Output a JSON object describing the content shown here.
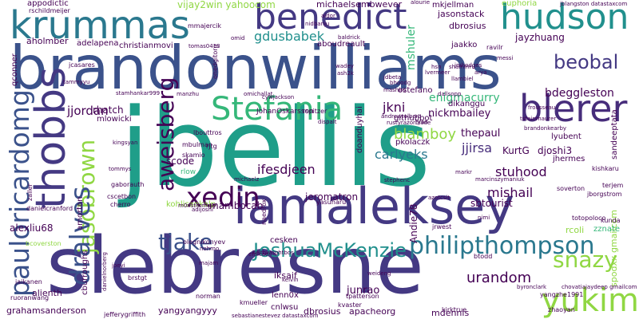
{
  "palette": {
    "teal": "#21908d",
    "blue": "#3b528b",
    "indigo": "#443983",
    "purple": "#472d7b",
    "dark": "#440154",
    "green": "#35b779",
    "lime": "#90d743",
    "yellow": "#dde318",
    "cyan": "#2a788e",
    "sea": "#1f9e89"
  },
  "words": {
    "jbellis": "jbellis",
    "brandonwilliams": "brandonwilliams",
    "slebresne": "slebresne",
    "iamaleksey": "iamaleksey",
    "benedict": "benedict",
    "hudson": "hudson",
    "krummas": "krummas",
    "thobbs": "thobbs",
    "stefania": "Stefania",
    "blerer": "blerer",
    "pauloricardomg": "pauloricardomg",
    "yukim": "yukim",
    "jasobrown": "jasobrown",
    "aweisberg": "aweisberg",
    "xedin": "xedin",
    "joshuamckenzie": "JoshuaMcKenzie",
    "philipthompson": "philipthompson",
    "snazy": "snazy",
    "tjake": "tjake",
    "beobal": "beobal",
    "dralves": "dralves",
    "ifesdjeen": "ifesdjeen",
    "urandom": "urandom",
    "stuhood": "stuhood",
    "carlyeks": "carlyeks",
    "mishail": "mishail",
    "mambocab": "mambocab",
    "gdusbabek": "gdusbabek",
    "jjordan": "jjordan",
    "jjirsa": "jjirsa",
    "thepaul": "thepaul",
    "blamboy": "blamboy",
    "jkni": "jkni",
    "nickmbailey": "nickmbailey",
    "enigmacurry": "enigmacurry",
    "bdeggleston": "bdeggleston",
    "jaysonstack": "jasonstack",
    "dbrosius": "dbrosius",
    "jayzhuang": "jayzhuang",
    "mshuler": "mshuler",
    "michaelsembwever": "michaelsembwever",
    "vijay2win": "vijay2win yahoocom",
    "appodictic": "appodictic",
    "rschildmeijer": "rschildmeijer",
    "aholmber": "aholmber",
    "adelapena": "adelapena",
    "christianmovi": "christianmovi",
    "qconner": "qconner",
    "rhatch": "rhatch",
    "mlowicki": "mlowicki",
    "scode": "scode",
    "kohlisankalp": "kohlisankalp",
    "jeromatron": "jeromatron",
    "sbtourist": "sbtourist",
    "andie78": "Andie78",
    "kurtg": "KurtG",
    "djoshi3": "djoshi3",
    "alexliu68": "alexliu68",
    "amorton": "amorton",
    "cburroughs": "cburroughs",
    "alienth": "alienth",
    "grahamsanderson": "grahamsanderson",
    "yangyangyyy": "yangyangyyy",
    "dbrosius2": "dbrosius",
    "apacheorg": "apacheorg",
    "mdennis": "mdennis",
    "junrao": "junrao",
    "lenn0x": "lenn0x",
    "cnlwsu": "cnlwsu",
    "iksaif": "iksaif",
    "cesken": "cesken",
    "rcoli": "rcoli",
    "spodxx": "spodxx gmailcom",
    "zznate": "zznate",
    "sandeeptata": "sandeeptata",
    "lyubent": "lyubent",
    "jhermes": "jhermes",
    "dikanggu": "dikanggu",
    "githubbot": "githubbot",
    "pkolaczk": "pkolaczk",
    "ostefano": "ostefano",
    "jkni2": "jjirsa",
    "euphoria": "euphoria",
    "mkjellman": "mkjellman",
    "jblangston": "jblangston datastaxcom",
    "aboudreault": "aboudreault",
    "jaakko": "jaakko",
    "mmajercik": "mmajercik",
    "johanoskarsson": "JohanOskarsson",
    "amorton2": "amorton",
    "ninjaaron": "nicholasmoore",
    "kishkaru": "kishkaru",
    "yangzhe1991": "yangzhe1991",
    "zhaoyan": "zhaoyan",
    "chovatiajaydeep": "chovatiajaydeep gmailcom",
    "bcoverston": "bcoverston",
    "jbeaver": "ravilr",
    "danielcranford": "danielcranford",
    "zaller": "zaller",
    "jaikanen": "jaikanen",
    "ruoranwang": "ruoranwang",
    "jeffreygriffith": "jefferygriffith",
    "sebastianestevez": "sebastianestevez datastaxcom",
    "kirktrue": "kirktrue",
    "brstgt": "brstgt",
    "norman": "norman",
    "kvaster": "kvaster",
    "tpatterson": "tpatterson",
    "jrwest": "jrwest",
    "btodd": "btodd",
    "terjem": "terjem",
    "jborgstrom": "jborgstrom",
    "soverton": "soverton",
    "totopoloco": "totopoloco",
    "kunda": "kunda",
    "byroncl": "byronclark",
    "eboverton": "mbulman",
    "cscetbon": "cscetbon",
    "cherro": "cherro",
    "tommys": "tommys",
    "rlow": "rlow",
    "skamio": "skamio",
    "rjtg": "rjtg",
    "markr": "markr",
    "marcinszymaniuk": "marcinszymaniuk",
    "atomic": "stephenc",
    "azotcsit": "azotcsit",
    "shaminru": "shaminru",
    "arya": "arya",
    "llambiel": "llambiel",
    "jmhodges": "jmhodges",
    "messi": "messi",
    "dallsopp": "dallsopp",
    "hsn": "hsn",
    "baldrick": "baldrick",
    "tomas0413": "tomas0413",
    "omid": "omid",
    "onedgitorg": "onedgitorg",
    "stamhankar999": "stamhankar999",
    "nanzhu": "manzhu",
    "rustyrazorblade": "rustyrazorblade",
    "andrewtolbert": "andrewtolbert",
    "brandonkearby": "brandonkearby",
    "frousseau": "frousseau",
    "tsteinmaurer": "tsteinmaurer",
    "keithwrightbos": "keithwrightbos",
    "efalcao": "efalcao",
    "kelvin": "kelvin",
    "weideng": "weideng",
    "majam": "majam",
    "kmueller": "kmueller",
    "michaelz": "michaelz",
    "ryan": "ryan",
    "joeyi": "joeyi",
    "danielnorberg": "danielnorberg",
    "jcasares": "jcasares",
    "tammyyu": "tammyyu",
    "gaborauth": "gaborauth",
    "jjordan2": "lbouttros",
    "kingsyan": "kingsyan",
    "omichallat": "omichallat",
    "cywjackson": "cywjackson",
    "rspitzer": "rspitzer",
    "dispalt": "dispalt",
    "alourie": "alourie",
    "adelapena2": "adelapena",
    "aldor": "aldor",
    "nidbanju": "nidbanju",
    "wadey": "wadey",
    "ash2k": "ash2k",
    "stefania2": "doanduyhai",
    "mamuarte": "m0nstermind",
    "nirmalsreenivas": "yasuharu",
    "naedrox": "naedrox",
    "adijoshi": "adijoshi",
    "olegnikonyev": "olegnikonyev",
    "nohmo": "nohmo",
    "jmhodges2": "nimi",
    "mashiro": "mashiro",
    "bhoodg": "bhoodg",
    "jdbeta": "jdbeta",
    "lvermeer": "lvermeer"
  }
}
